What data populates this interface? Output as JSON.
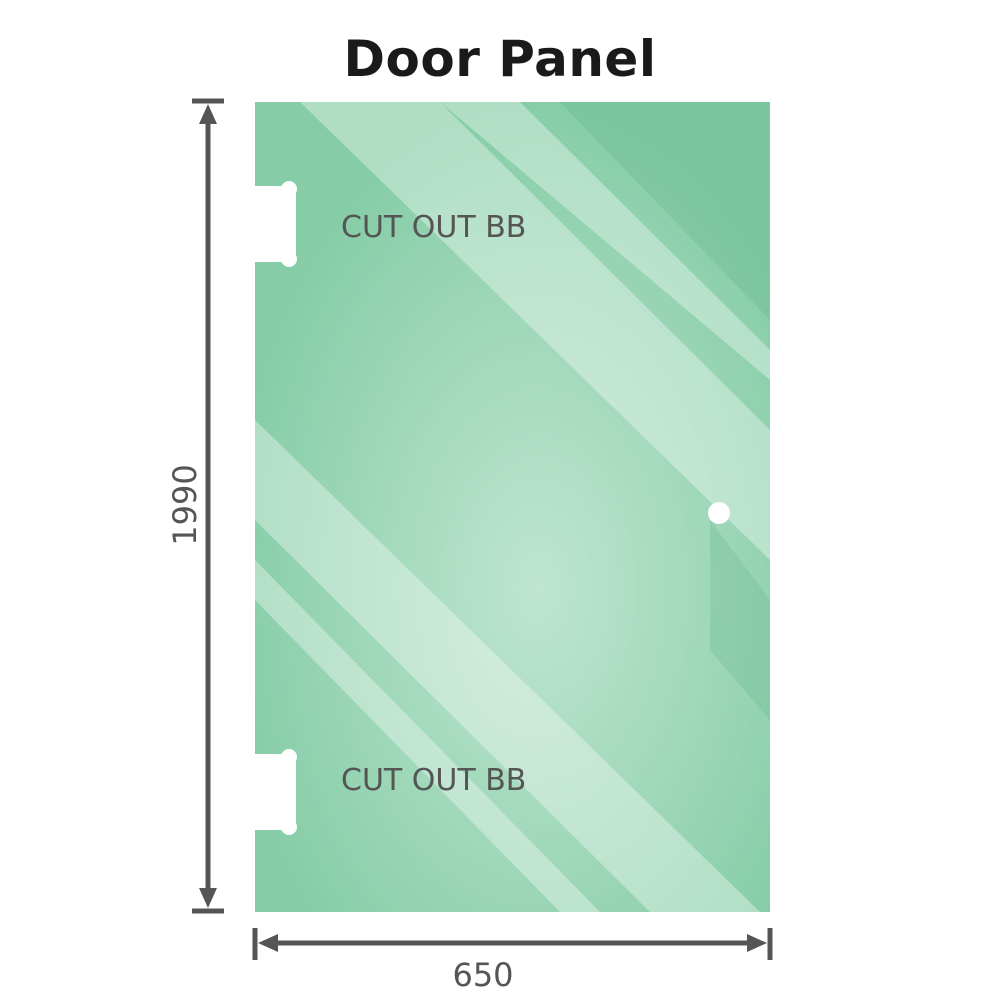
{
  "title": "Door Panel",
  "dimensions": {
    "height": "1990",
    "width": "650"
  },
  "cutouts": [
    {
      "label": "CUT OUT BB"
    },
    {
      "label": "CUT OUT BB"
    }
  ],
  "colors": {
    "glass": "#8dd0ad",
    "glass_light": "#b9e3cd",
    "dimension_line": "#555555"
  }
}
